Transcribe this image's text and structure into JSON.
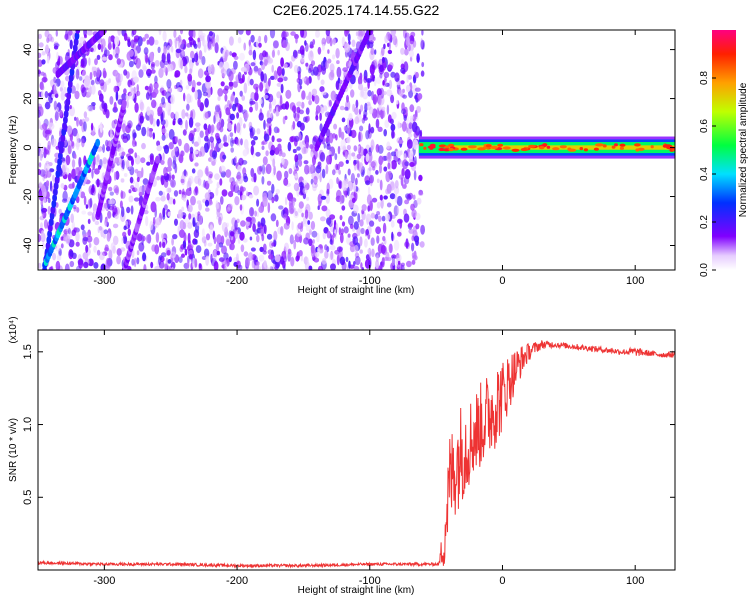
{
  "figure": {
    "title": "C2E6.2025.174.14.55.G22"
  },
  "chart_data": [
    {
      "type": "heatmap",
      "xlabel": "Height of straight line (km)",
      "ylabel": "Frequency (Hz)",
      "xlim": [
        -350,
        130
      ],
      "ylim": [
        -50,
        48
      ],
      "x_ticks": [
        -300,
        -200,
        -100,
        0,
        100
      ],
      "y_ticks": [
        -40,
        -20,
        0,
        20,
        40
      ],
      "noise_region": {
        "x_start": -350,
        "x_end": -60,
        "freq_min": -50,
        "freq_max": 48,
        "base_amplitude": 0.12
      },
      "tracks": [
        {
          "x": [
            -345,
            -320
          ],
          "y": [
            -50,
            48
          ],
          "amplitude": 0.2
        },
        {
          "x": [
            -345,
            -305
          ],
          "y": [
            -48,
            2
          ],
          "amplitude": 0.35
        },
        {
          "x": [
            -335,
            -300
          ],
          "y": [
            30,
            48
          ],
          "amplitude": 0.15
        },
        {
          "x": [
            -305,
            -285
          ],
          "y": [
            -28,
            18
          ],
          "amplitude": 0.12
        },
        {
          "x": [
            -285,
            -260
          ],
          "y": [
            -50,
            -5
          ],
          "amplitude": 0.12
        },
        {
          "x": [
            -140,
            -100
          ],
          "y": [
            0,
            48
          ],
          "amplitude": 0.15
        }
      ],
      "signal_band": {
        "x_start": -63,
        "x_end": 130,
        "center": 0,
        "half_width": 3,
        "amplitude": 0.75
      },
      "colorbar": {
        "label": "Normalized spectral amplitude",
        "ticks": [
          0.0,
          0.2,
          0.4,
          0.6,
          0.8
        ],
        "range": [
          0,
          1
        ]
      }
    },
    {
      "type": "line",
      "xlabel": "Height of straight line (km)",
      "ylabel": "SNR (10 * v/v)",
      "scale_label": "(x10⁴)",
      "xlim": [
        -350,
        130
      ],
      "ylim": [
        0,
        1.65
      ],
      "x_ticks": [
        -300,
        -200,
        -100,
        0,
        100
      ],
      "y_ticks": [
        0.5,
        1.0,
        1.5
      ],
      "series": [
        {
          "color": "#ee3333",
          "x": [
            -350,
            -300,
            -250,
            -200,
            -150,
            -100,
            -60,
            -48,
            -44,
            -40,
            -36,
            -32,
            -28,
            -24,
            -20,
            -16,
            -12,
            -8,
            -4,
            0,
            5,
            10,
            15,
            20,
            25,
            30,
            40,
            50,
            60,
            70,
            80,
            90,
            100,
            110,
            120,
            130
          ],
          "y": [
            0.05,
            0.04,
            0.04,
            0.03,
            0.03,
            0.04,
            0.04,
            0.04,
            0.2,
            0.6,
            0.7,
            0.8,
            0.85,
            0.9,
            0.95,
            1.0,
            1.05,
            1.1,
            1.15,
            1.2,
            1.3,
            1.38,
            1.45,
            1.5,
            1.53,
            1.55,
            1.55,
            1.54,
            1.53,
            1.52,
            1.51,
            1.5,
            1.5,
            1.49,
            1.48,
            1.48
          ],
          "noise": [
            0.01,
            0.01,
            0.01,
            0.01,
            0.01,
            0.01,
            0.01,
            0.01,
            0.2,
            0.35,
            0.35,
            0.35,
            0.35,
            0.3,
            0.3,
            0.3,
            0.3,
            0.3,
            0.3,
            0.25,
            0.2,
            0.15,
            0.1,
            0.06,
            0.04,
            0.03,
            0.02,
            0.02,
            0.02,
            0.02,
            0.02,
            0.02,
            0.03,
            0.02,
            0.02,
            0.02
          ]
        }
      ]
    }
  ]
}
